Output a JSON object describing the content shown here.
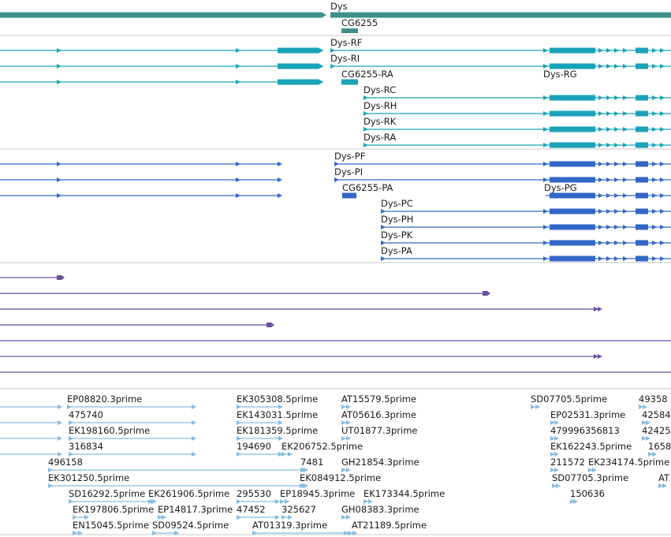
{
  "colors": {
    "gene": "#3f8f8c",
    "transcript": "#1aa3b8",
    "protein": "#3367c7",
    "other": "#6b4fa0",
    "est": "#86bde0",
    "separator": "#c8c8c8"
  },
  "tracks": {
    "gene": {
      "items": [
        {
          "label": "Dys",
          "shape": "thick",
          "start": 0,
          "end": 408,
          "labelX": null
        },
        {
          "label": "Dys",
          "shape": "thick",
          "start": 419,
          "end": 851,
          "labelX": 419
        },
        {
          "label": "CG6255",
          "shape": "thick",
          "start": 433,
          "end": 454,
          "labelX": 433
        }
      ]
    },
    "transcripts": {
      "items": [
        {
          "label": "Dys-RF",
          "start": 0,
          "end": 410,
          "labelX": 419,
          "row": 0,
          "blocks": [
            [
              352,
              404
            ]
          ],
          "arrows": [
            75,
            302
          ],
          "right": {
            "start": 419,
            "end": 851,
            "blocks": [
              [
                697,
                755
              ],
              [
                806,
                822
              ]
            ],
            "arrows": [
              422,
              692,
              762,
              772,
              782,
              793,
              830,
              840
            ]
          }
        },
        {
          "label": "Dys-RI",
          "start": 0,
          "end": 410,
          "labelX": 419,
          "row": 1,
          "blocks": [
            [
              352,
              404
            ]
          ],
          "arrows": [
            75,
            302
          ],
          "right": {
            "start": 419,
            "end": 851,
            "blocks": [
              [
                697,
                755
              ],
              [
                806,
                822
              ]
            ],
            "arrows": [
              422,
              692,
              762,
              772,
              782,
              793,
              830,
              840
            ]
          }
        },
        {
          "label": "CG6255-RA",
          "start": 0,
          "end": 410,
          "labelX": 433,
          "row": 2,
          "blocks": [
            [
              352,
              404
            ]
          ],
          "arrows": [
            75,
            302
          ],
          "right": {
            "start": 433,
            "end": 454,
            "blocks": [
              [
                433,
                454
              ]
            ],
            "arrows": []
          }
        },
        {
          "label": "Dys-RG",
          "start": 692,
          "end": 851,
          "labelX": 689,
          "row": 2,
          "blocks": [
            [
              697,
              755
            ],
            [
              806,
              822
            ]
          ],
          "arrows": [
            762,
            772,
            782,
            793,
            830,
            840
          ]
        },
        {
          "label": "Dys-RC",
          "start": 461,
          "end": 851,
          "labelX": 461,
          "row": 3,
          "blocks": [
            [
              697,
              755
            ],
            [
              806,
              822
            ]
          ],
          "arrows": [
            464,
            692,
            762,
            772,
            782,
            793,
            830,
            840
          ]
        },
        {
          "label": "Dys-RH",
          "start": 461,
          "end": 851,
          "labelX": 461,
          "row": 4,
          "blocks": [
            [
              697,
              755
            ],
            [
              806,
              822
            ]
          ],
          "arrows": [
            464,
            692,
            762,
            772,
            782,
            793,
            830,
            840
          ]
        },
        {
          "label": "Dys-RK",
          "start": 461,
          "end": 851,
          "labelX": 461,
          "row": 5,
          "blocks": [
            [
              697,
              755
            ],
            [
              806,
              822
            ]
          ],
          "arrows": [
            464,
            692,
            762,
            772,
            782,
            793,
            830,
            840
          ]
        },
        {
          "label": "Dys-RA",
          "start": 461,
          "end": 851,
          "labelX": 461,
          "row": 6,
          "blocks": [
            [
              697,
              755
            ],
            [
              806,
              822
            ]
          ],
          "arrows": [
            464,
            692,
            762,
            772,
            782,
            793,
            830,
            840
          ]
        }
      ]
    },
    "proteins": {
      "items": [
        {
          "label": "Dys-PF",
          "row": 0,
          "labelX": 424,
          "segments": [
            {
              "start": 0,
              "end": 357,
              "blocks": [],
              "arrows": [
                75,
                302,
                355
              ]
            },
            {
              "start": 424,
              "end": 851,
              "blocks": [
                [
                  697,
                  755
                ],
                [
                  806,
                  822
                ]
              ],
              "arrows": [
                427,
                692,
                762,
                772,
                782,
                793,
                830,
                840
              ]
            }
          ]
        },
        {
          "label": "Dys-PI",
          "row": 1,
          "labelX": 424,
          "segments": [
            {
              "start": 0,
              "end": 357,
              "blocks": [],
              "arrows": [
                75,
                302,
                355
              ]
            },
            {
              "start": 424,
              "end": 851,
              "blocks": [
                [
                  697,
                  755
                ],
                [
                  806,
                  822
                ]
              ],
              "arrows": [
                427,
                692,
                762,
                772,
                782,
                793,
                830,
                840
              ]
            }
          ]
        },
        {
          "label": "CG6255-PA",
          "row": 2,
          "labelX": 434,
          "segments": [
            {
              "start": 0,
              "end": 357,
              "blocks": [],
              "arrows": [
                75,
                302,
                355
              ]
            },
            {
              "start": 434,
              "end": 452,
              "blocks": [
                [
                  434,
                  452
                ]
              ],
              "arrows": []
            }
          ]
        },
        {
          "label": "Dys-PG",
          "row": 2,
          "labelX": 690,
          "segments": [
            {
              "start": 692,
              "end": 851,
              "blocks": [
                [
                  697,
                  755
                ],
                [
                  806,
                  822
                ]
              ],
              "arrows": [
                762,
                772,
                782,
                793,
                830,
                840
              ]
            }
          ]
        },
        {
          "label": "Dys-PC",
          "row": 3,
          "labelX": 483,
          "segments": [
            {
              "start": 483,
              "end": 851,
              "blocks": [
                [
                  697,
                  755
                ],
                [
                  806,
                  822
                ]
              ],
              "arrows": [
                486,
                692,
                762,
                772,
                782,
                793,
                830,
                840
              ]
            }
          ]
        },
        {
          "label": "Dys-PH",
          "row": 4,
          "labelX": 483,
          "segments": [
            {
              "start": 483,
              "end": 851,
              "blocks": [
                [
                  697,
                  755
                ],
                [
                  806,
                  822
                ]
              ],
              "arrows": [
                486,
                692,
                762,
                772,
                782,
                793,
                830,
                840
              ]
            }
          ]
        },
        {
          "label": "Dys-PK",
          "row": 5,
          "labelX": 483,
          "segments": [
            {
              "start": 483,
              "end": 851,
              "blocks": [
                [
                  697,
                  755
                ],
                [
                  806,
                  822
                ]
              ],
              "arrows": [
                486,
                692,
                762,
                772,
                782,
                793,
                830,
                840
              ]
            }
          ]
        },
        {
          "label": "Dys-PA",
          "row": 6,
          "labelX": 483,
          "segments": [
            {
              "start": 483,
              "end": 851,
              "blocks": [
                [
                  697,
                  755
                ],
                [
                  806,
                  822
                ]
              ],
              "arrows": [
                486,
                692,
                762,
                772,
                782,
                793,
                830,
                840
              ]
            }
          ]
        }
      ]
    },
    "other": {
      "items": [
        {
          "row": 0,
          "start": 0,
          "end": 80,
          "cap": "dot"
        },
        {
          "row": 1,
          "start": 0,
          "end": 620,
          "cap": "dot"
        },
        {
          "row": 2,
          "start": 0,
          "end": 762,
          "cap": "double"
        },
        {
          "row": 3,
          "start": 0,
          "end": 346,
          "cap": "dot"
        },
        {
          "row": 4,
          "start": 0,
          "end": 851,
          "cap": "none"
        },
        {
          "row": 5,
          "start": 0,
          "end": 762,
          "cap": "double"
        },
        {
          "row": 6,
          "start": 0,
          "end": 851,
          "cap": "none"
        }
      ]
    },
    "est": {
      "items": [
        {
          "label": "EP08820.3prime",
          "labelX": 85,
          "row": 0,
          "start": 0,
          "end": 78,
          "rstart": 85,
          "rend": 248
        },
        {
          "label": "475740",
          "labelX": 87,
          "row": 1,
          "start": 0,
          "end": 78,
          "rstart": 87,
          "rend": 248
        },
        {
          "label": "EK198160.5prime",
          "labelX": 87,
          "row": 2,
          "start": 0,
          "end": 78,
          "rstart": 87,
          "rend": 248
        },
        {
          "label": "316834",
          "labelX": 87,
          "row": 3,
          "start": 0,
          "end": 78,
          "rstart": 87,
          "rend": 248
        },
        {
          "label": "496158",
          "labelX": 61,
          "row": 4,
          "start": 0,
          "end": 0,
          "rstart": 61,
          "rend": 388
        },
        {
          "label": "EK301250.5prime",
          "labelX": 61,
          "row": 5,
          "start": 0,
          "end": 0,
          "rstart": 61,
          "rend": 388
        },
        {
          "label": "SD16292.5prime",
          "labelX": 87,
          "row": 6,
          "start": 0,
          "end": 0,
          "rstart": 87,
          "rend": 196
        },
        {
          "label": "EK197806.5prime",
          "labelX": 92,
          "row": 7,
          "start": 0,
          "end": 0,
          "rstart": 92,
          "rend": 112
        },
        {
          "label": "EN15045.5prime",
          "labelX": 92,
          "row": 8,
          "start": 0,
          "end": 0,
          "rstart": 92,
          "rend": 104
        },
        {
          "label": "EK305308.5prime",
          "labelX": 300,
          "row": 0,
          "start": 0,
          "end": 0,
          "rstart": 300,
          "rend": 358
        },
        {
          "label": "EK143031.5prime",
          "labelX": 300,
          "row": 1,
          "start": 0,
          "end": 0,
          "rstart": 300,
          "rend": 358
        },
        {
          "label": "EK181359.5prime",
          "labelX": 300,
          "row": 2,
          "start": 0,
          "end": 0,
          "rstart": 300,
          "rend": 358
        },
        {
          "label": "194690",
          "labelX": 300,
          "row": 3,
          "start": 0,
          "end": 0,
          "rstart": 300,
          "rend": 358
        },
        {
          "label": "EK206752.5prime",
          "labelX": 357,
          "row": 3,
          "start": 0,
          "end": 0,
          "rstart": 357,
          "rend": 370
        },
        {
          "label": "7481",
          "labelX": 381,
          "row": 4,
          "start": 0,
          "end": 0,
          "rstart": 381,
          "rend": 390
        },
        {
          "label": "EK084912.5prime",
          "labelX": 380,
          "row": 5,
          "start": 0,
          "end": 0,
          "rstart": 380,
          "rend": 390
        },
        {
          "label": "EK261906.5prime",
          "labelX": 188,
          "row": 6,
          "start": 0,
          "end": 0,
          "rstart": 188,
          "rend": 198
        },
        {
          "label": "EP14817.3prime",
          "labelX": 200,
          "row": 7,
          "start": 0,
          "end": 0,
          "rstart": 200,
          "rend": 210
        },
        {
          "label": "SD09524.5prime",
          "labelX": 193,
          "row": 8,
          "start": 0,
          "end": 0,
          "rstart": 193,
          "rend": 226
        },
        {
          "label": "295530",
          "labelX": 300,
          "row": 6,
          "start": 0,
          "end": 0,
          "rstart": 300,
          "rend": 354
        },
        {
          "label": "47452",
          "labelX": 300,
          "row": 7,
          "start": 0,
          "end": 0,
          "rstart": 300,
          "rend": 354
        },
        {
          "label": "325627",
          "labelX": 357,
          "row": 7,
          "start": 0,
          "end": 0,
          "rstart": 357,
          "rend": 370
        },
        {
          "label": "EP18945.3prime",
          "labelX": 355,
          "row": 6,
          "start": 0,
          "end": 0,
          "rstart": 355,
          "rend": 366
        },
        {
          "label": "AT01319.3prime",
          "labelX": 320,
          "row": 8,
          "start": 0,
          "end": 0,
          "rstart": 320,
          "rend": 446
        },
        {
          "label": "AT15579.5prime",
          "labelX": 433,
          "row": 0,
          "start": 0,
          "end": 0,
          "rstart": 433,
          "rend": 444
        },
        {
          "label": "AT05616.3prime",
          "labelX": 433,
          "row": 1,
          "start": 0,
          "end": 0,
          "rstart": 433,
          "rend": 444
        },
        {
          "label": "UT01877.3prime",
          "labelX": 433,
          "row": 2,
          "start": 0,
          "end": 0,
          "rstart": 433,
          "rend": 444
        },
        {
          "label": "GH21854.3prime",
          "labelX": 433,
          "row": 4,
          "start": 0,
          "end": 0,
          "rstart": 433,
          "rend": 444
        },
        {
          "label": "EK173344.5prime",
          "labelX": 461,
          "row": 6,
          "start": 0,
          "end": 0,
          "rstart": 461,
          "rend": 472
        },
        {
          "label": "GH08383.3prime",
          "labelX": 433,
          "row": 7,
          "start": 0,
          "end": 0,
          "rstart": 433,
          "rend": 444
        },
        {
          "label": "AT21189.5prime",
          "labelX": 446,
          "row": 8,
          "start": 0,
          "end": 0,
          "rstart": 436,
          "rend": 452
        },
        {
          "label": "SD07705.5prime",
          "labelX": 673,
          "row": 0,
          "start": 0,
          "end": 0,
          "rstart": 673,
          "rend": 684
        },
        {
          "label": "EP02531.3prime",
          "labelX": 698,
          "row": 1,
          "start": 0,
          "end": 0,
          "rstart": 698,
          "rend": 708
        },
        {
          "label": "479996356813",
          "labelX": 698,
          "row": 2,
          "start": 0,
          "end": 0,
          "rstart": 698,
          "rend": 708
        },
        {
          "label": "EK162243.5prime",
          "labelX": 698,
          "row": 3,
          "start": 0,
          "end": 0,
          "rstart": 698,
          "rend": 708
        },
        {
          "label": "211572",
          "labelX": 698,
          "row": 4,
          "start": 0,
          "end": 0,
          "rstart": 698,
          "rend": 708
        },
        {
          "label": "EK234174.5prime",
          "labelX": 746,
          "row": 4,
          "start": 0,
          "end": 0,
          "rstart": 746,
          "rend": 756
        },
        {
          "label": "SD07705.3prime",
          "labelX": 700,
          "row": 5,
          "start": 0,
          "end": 0,
          "rstart": 700,
          "rend": 710
        },
        {
          "label": "150636",
          "labelX": 723,
          "row": 6,
          "start": 0,
          "end": 0,
          "rstart": 723,
          "rend": 732
        },
        {
          "label": "49358",
          "labelX": 810,
          "row": 0,
          "start": 0,
          "end": 0,
          "rstart": 810,
          "rend": 820
        },
        {
          "label": "42584",
          "labelX": 814,
          "row": 1,
          "start": 0,
          "end": 0,
          "rstart": 814,
          "rend": 824
        },
        {
          "label": "42425",
          "labelX": 814,
          "row": 2,
          "start": 0,
          "end": 0,
          "rstart": 814,
          "rend": 824
        },
        {
          "label": "1658",
          "labelX": 822,
          "row": 3,
          "start": 0,
          "end": 0,
          "rstart": 822,
          "rend": 832
        },
        {
          "label": "AT",
          "labelX": 835,
          "row": 5,
          "start": 0,
          "end": 0,
          "rstart": 835,
          "rend": 845
        }
      ]
    }
  }
}
